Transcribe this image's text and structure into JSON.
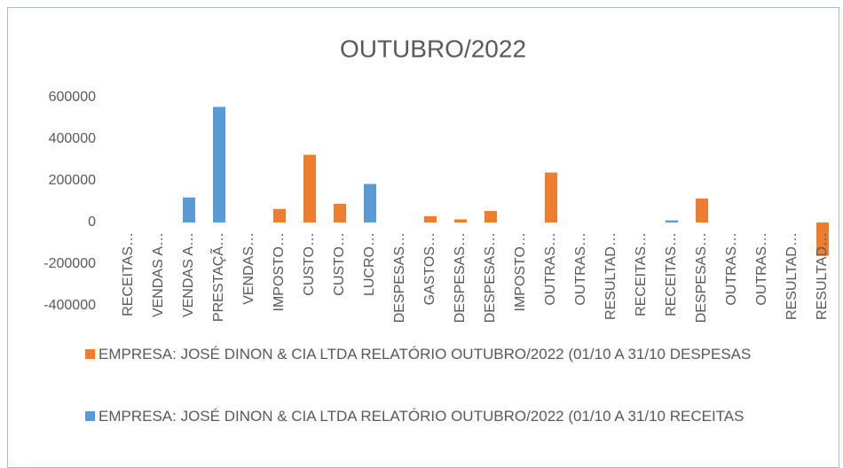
{
  "chart_data": {
    "type": "bar",
    "title": "OUTUBRO/2022",
    "categories": [
      "RECEITAS…",
      "VENDAS A…",
      "VENDAS A…",
      "PRESTAÇÃ…",
      "VENDAS…",
      "IMPOSTO…",
      "CUSTO…",
      "CUSTO…",
      "LUCRO…",
      "DESPESAS…",
      "GASTOS…",
      "DESPESAS…",
      "DESPESAS…",
      "IMPOSTO…",
      "OUTRAS…",
      "OUTRAS…",
      "RESULTAD…",
      "RECEITAS…",
      "RECEITAS…",
      "DESPESAS…",
      "OUTRAS…",
      "OUTRAS…",
      "RESULTAD…",
      "RESULTAD…"
    ],
    "series": [
      {
        "name": "EMPRESA: JOSÉ DINON & CIA LTDA RELATÓRIO OUTUBRO/2022 (01/10 A 31/10 DESPESAS",
        "color": "#ed7d31",
        "values": [
          0,
          0,
          0,
          0,
          0,
          65000,
          325000,
          90000,
          0,
          0,
          30000,
          15000,
          55000,
          0,
          240000,
          0,
          0,
          0,
          0,
          115000,
          0,
          0,
          0,
          -160000
        ]
      },
      {
        "name": "EMPRESA: JOSÉ DINON & CIA LTDA RELATÓRIO OUTUBRO/2022 (01/10 A 31/10 RECEITAS",
        "color": "#5b9bd5",
        "values": [
          0,
          0,
          120000,
          555000,
          0,
          0,
          0,
          0,
          185000,
          0,
          0,
          0,
          0,
          0,
          0,
          0,
          0,
          0,
          10000,
          0,
          0,
          0,
          0,
          0
        ]
      }
    ],
    "ylim": [
      -400000,
      600000
    ],
    "yticks": [
      -400000,
      -200000,
      0,
      200000,
      400000,
      600000
    ],
    "grid": false
  }
}
